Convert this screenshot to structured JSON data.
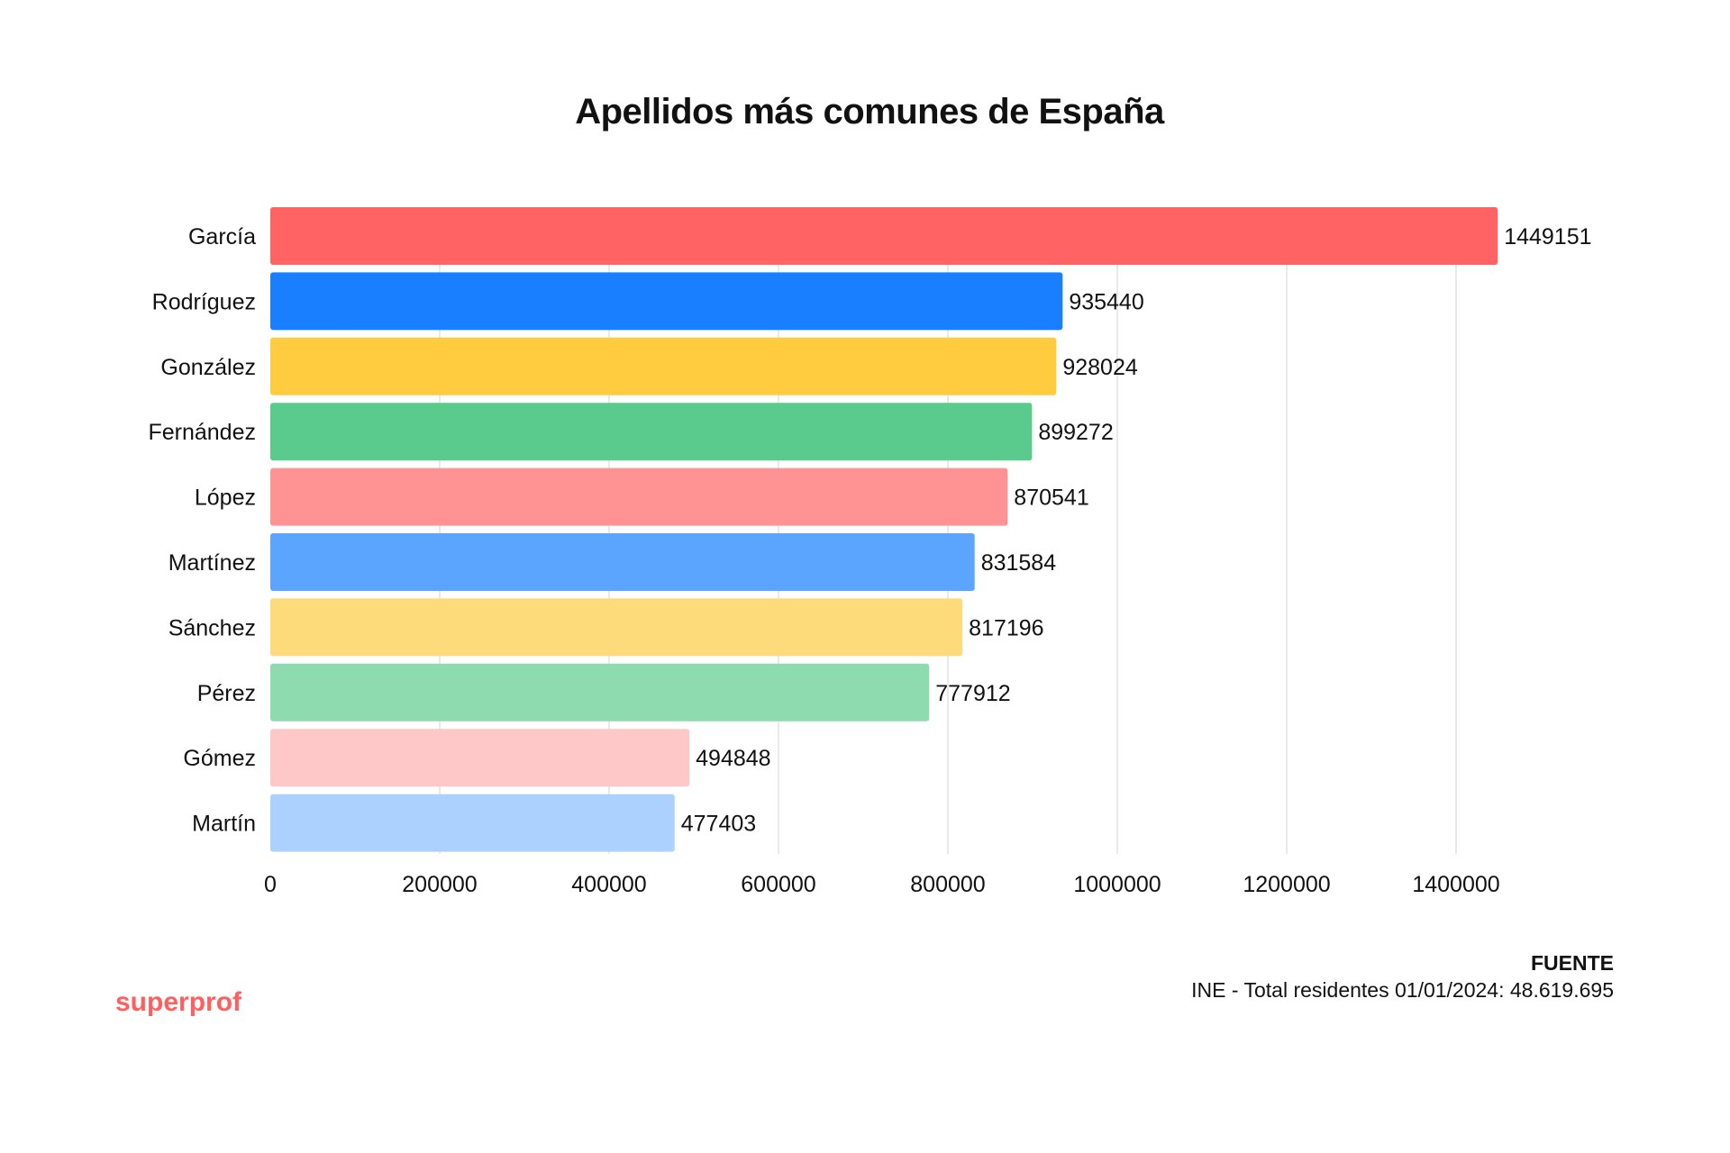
{
  "chart_data": {
    "type": "bar",
    "orientation": "horizontal",
    "title": "Apellidos más comunes de España",
    "categories": [
      "García",
      "Rodríguez",
      "González",
      "Fernández",
      "López",
      "Martínez",
      "Sánchez",
      "Pérez",
      "Gómez",
      "Martín"
    ],
    "values": [
      1449151,
      935440,
      928024,
      899272,
      870541,
      831584,
      817196,
      777912,
      494848,
      477403
    ],
    "colors": [
      "#FF6363",
      "#1A7FFF",
      "#FFCC3F",
      "#5ACB8C",
      "#FF9393",
      "#5CA5FF",
      "#FDDB7A",
      "#8EDBAF",
      "#FFC8C8",
      "#ADD1FF"
    ],
    "xlim": [
      0,
      1450000
    ],
    "xticks": [
      "0",
      "200000",
      "400000",
      "600000",
      "800000",
      "1000000",
      "1200000",
      "1400000"
    ],
    "grid": "vertical",
    "data_labels": true,
    "xlabel": "",
    "ylabel": ""
  },
  "source": {
    "heading": "FUENTE",
    "text": "INE - Total residentes 01/01/2024: 48.619.695"
  },
  "brand": "superprof"
}
